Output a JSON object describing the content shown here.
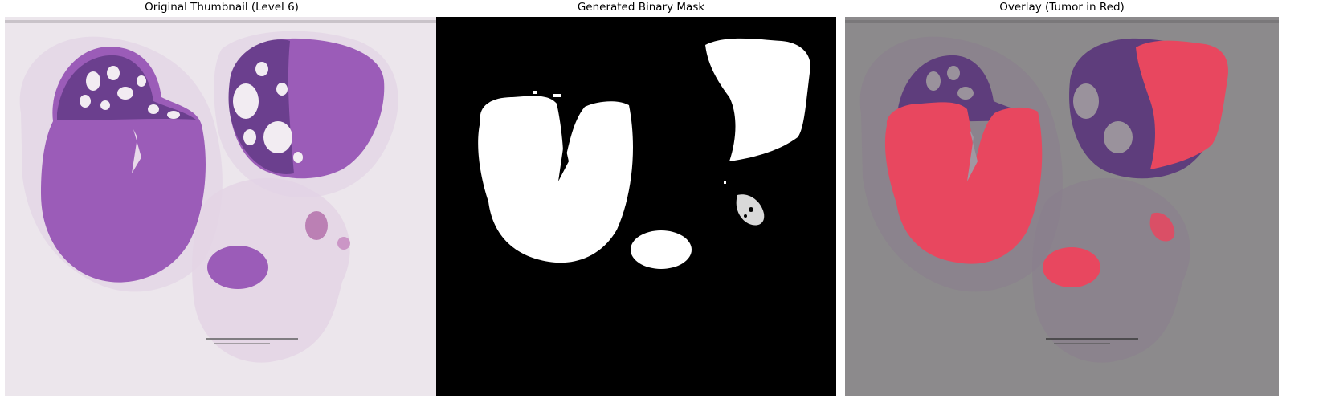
{
  "panels": [
    {
      "title": "Original Thumbnail (Level 6)"
    },
    {
      "title": "Generated Binary Mask"
    },
    {
      "title": "Overlay (Tumor in Red)"
    }
  ],
  "colors": {
    "slide_background": "#ece6ec",
    "tissue_stroma": "#ddc6df",
    "tissue_dense": "#9b58b4",
    "tissue_dark": "#6b3f8e",
    "mask_background": "#000000",
    "mask_foreground": "#ffffff",
    "overlay_background": "#8c8a8c",
    "tumor_red": "#e8475f"
  }
}
